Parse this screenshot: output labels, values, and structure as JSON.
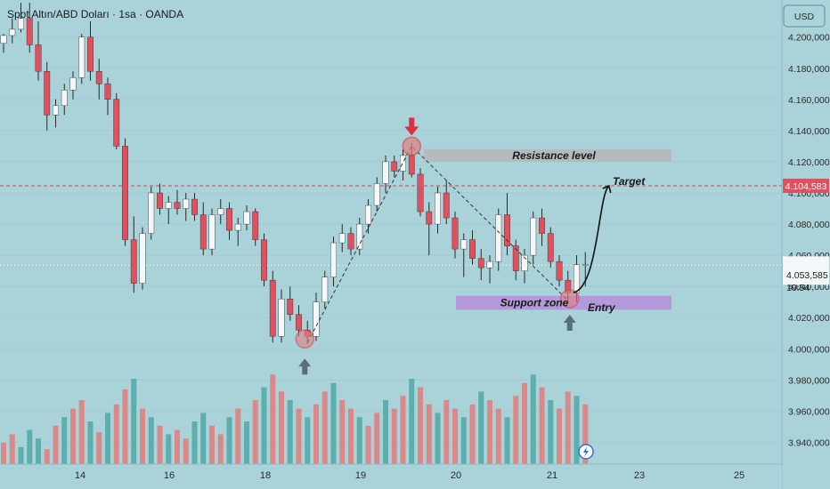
{
  "header": {
    "title": "Spot Altın/ABD Doları · 1sa · OANDA",
    "currency": "USD"
  },
  "colors": {
    "bull": "#f4f7f8",
    "bear": "#e0505e",
    "vol_bull": "#55aaa8",
    "vol_bear": "#e08080",
    "background": "#a9d2d9"
  },
  "chart_data": {
    "type": "candlestick",
    "title": "Spot Altın/ABD Doları · 1sa · OANDA",
    "y_unit": "USD",
    "ylim": [
      3930000,
      4222000
    ],
    "y_ticks": [
      "3.940,000",
      "3.960,000",
      "3.980,000",
      "4.000,000",
      "4.020,000",
      "4.040,000",
      "4.060,000",
      "4.080,000",
      "4.100,000",
      "4.120,000",
      "4.140,000",
      "4.160,000",
      "4.180,000",
      "4.200,000"
    ],
    "x_ticks": [
      "14",
      "16",
      "18",
      "19",
      "20",
      "21",
      "23",
      "25"
    ],
    "current_price": {
      "label": "4.053,585",
      "value": 4053585,
      "countdown": "19:54"
    },
    "target_price": {
      "label": "4.104,583",
      "value": 4104583
    },
    "annotations": {
      "resistance": {
        "label": "Resistance level",
        "low": 4120000,
        "high": 4128000
      },
      "support": {
        "label": "Support zone",
        "low": 4025000,
        "high": 4034000
      },
      "target": "Target",
      "entry": "Entry"
    },
    "candles": [
      [
        4196,
        4202,
        4190,
        4201
      ],
      [
        4201,
        4212,
        4196,
        4205
      ],
      [
        4205,
        4222,
        4203,
        4212
      ],
      [
        4212,
        4222,
        4190,
        4195
      ],
      [
        4195,
        4210,
        4172,
        4178
      ],
      [
        4178,
        4184,
        4140,
        4150
      ],
      [
        4150,
        4160,
        4142,
        4156
      ],
      [
        4156,
        4170,
        4150,
        4166
      ],
      [
        4166,
        4178,
        4160,
        4174
      ],
      [
        4174,
        4202,
        4170,
        4200
      ],
      [
        4200,
        4210,
        4172,
        4178
      ],
      [
        4178,
        4186,
        4160,
        4170
      ],
      [
        4170,
        4174,
        4150,
        4160
      ],
      [
        4160,
        4164,
        4128,
        4130
      ],
      [
        4130,
        4135,
        4066,
        4070
      ],
      [
        4070,
        4085,
        4036,
        4042
      ],
      [
        4042,
        4078,
        4038,
        4074
      ],
      [
        4074,
        4104,
        4070,
        4100
      ],
      [
        4100,
        4106,
        4086,
        4090
      ],
      [
        4090,
        4098,
        4080,
        4094
      ],
      [
        4094,
        4102,
        4086,
        4090
      ],
      [
        4090,
        4100,
        4082,
        4096
      ],
      [
        4096,
        4100,
        4082,
        4086
      ],
      [
        4086,
        4094,
        4060,
        4064
      ],
      [
        4064,
        4090,
        4060,
        4086
      ],
      [
        4086,
        4096,
        4080,
        4090
      ],
      [
        4090,
        4094,
        4070,
        4076
      ],
      [
        4076,
        4084,
        4066,
        4080
      ],
      [
        4080,
        4092,
        4076,
        4088
      ],
      [
        4088,
        4090,
        4066,
        4070
      ],
      [
        4070,
        4074,
        4040,
        4044
      ],
      [
        4044,
        4050,
        4004,
        4008
      ],
      [
        4008,
        4038,
        4004,
        4032
      ],
      [
        4032,
        4040,
        4018,
        4022
      ],
      [
        4022,
        4028,
        4008,
        4012
      ],
      [
        4012,
        4018,
        4003,
        4008
      ],
      [
        4008,
        4036,
        4005,
        4030
      ],
      [
        4030,
        4050,
        4026,
        4046
      ],
      [
        4046,
        4072,
        4040,
        4068
      ],
      [
        4068,
        4080,
        4062,
        4074
      ],
      [
        4074,
        4078,
        4060,
        4064
      ],
      [
        4064,
        4084,
        4060,
        4080
      ],
      [
        4080,
        4096,
        4074,
        4092
      ],
      [
        4092,
        4110,
        4088,
        4106
      ],
      [
        4106,
        4124,
        4100,
        4120
      ],
      [
        4120,
        4124,
        4110,
        4114
      ],
      [
        4114,
        4128,
        4108,
        4124
      ],
      [
        4124,
        4132,
        4110,
        4112
      ],
      [
        4112,
        4116,
        4085,
        4088
      ],
      [
        4088,
        4094,
        4060,
        4080
      ],
      [
        4080,
        4104,
        4074,
        4100
      ],
      [
        4100,
        4108,
        4080,
        4084
      ],
      [
        4084,
        4088,
        4058,
        4064
      ],
      [
        4064,
        4074,
        4046,
        4070
      ],
      [
        4070,
        4076,
        4054,
        4058
      ],
      [
        4058,
        4064,
        4044,
        4052
      ],
      [
        4052,
        4060,
        4042,
        4056
      ],
      [
        4056,
        4090,
        4050,
        4086
      ],
      [
        4086,
        4100,
        4060,
        4066
      ],
      [
        4066,
        4070,
        4044,
        4050
      ],
      [
        4050,
        4064,
        4042,
        4060
      ],
      [
        4060,
        4088,
        4054,
        4084
      ],
      [
        4084,
        4090,
        4066,
        4074
      ],
      [
        4074,
        4078,
        4052,
        4056
      ],
      [
        4056,
        4060,
        4040,
        4044
      ],
      [
        4044,
        4050,
        4030,
        4036
      ],
      [
        4036,
        4060,
        4030,
        4054
      ],
      [
        4054,
        4062,
        4040,
        4054
      ]
    ],
    "volumes": [
      [
        10,
        0
      ],
      [
        14,
        0
      ],
      [
        8,
        1
      ],
      [
        16,
        1
      ],
      [
        12,
        1
      ],
      [
        7,
        0
      ],
      [
        18,
        0
      ],
      [
        22,
        1
      ],
      [
        26,
        0
      ],
      [
        30,
        0
      ],
      [
        20,
        1
      ],
      [
        15,
        0
      ],
      [
        24,
        1
      ],
      [
        28,
        0
      ],
      [
        35,
        0
      ],
      [
        40,
        1
      ],
      [
        26,
        0
      ],
      [
        22,
        1
      ],
      [
        18,
        0
      ],
      [
        14,
        1
      ],
      [
        16,
        0
      ],
      [
        12,
        0
      ],
      [
        20,
        1
      ],
      [
        24,
        1
      ],
      [
        18,
        0
      ],
      [
        14,
        0
      ],
      [
        22,
        1
      ],
      [
        26,
        0
      ],
      [
        20,
        1
      ],
      [
        30,
        0
      ],
      [
        36,
        1
      ],
      [
        42,
        0
      ],
      [
        34,
        0
      ],
      [
        30,
        1
      ],
      [
        26,
        0
      ],
      [
        22,
        1
      ],
      [
        28,
        0
      ],
      [
        34,
        0
      ],
      [
        38,
        1
      ],
      [
        30,
        0
      ],
      [
        26,
        0
      ],
      [
        22,
        1
      ],
      [
        18,
        0
      ],
      [
        24,
        0
      ],
      [
        30,
        1
      ],
      [
        26,
        0
      ],
      [
        32,
        0
      ],
      [
        40,
        1
      ],
      [
        36,
        0
      ],
      [
        28,
        0
      ],
      [
        24,
        1
      ],
      [
        30,
        0
      ],
      [
        26,
        0
      ],
      [
        22,
        1
      ],
      [
        28,
        0
      ],
      [
        34,
        1
      ],
      [
        30,
        0
      ],
      [
        26,
        0
      ],
      [
        22,
        1
      ],
      [
        32,
        0
      ],
      [
        38,
        0
      ],
      [
        42,
        1
      ],
      [
        36,
        0
      ],
      [
        30,
        1
      ],
      [
        26,
        0
      ],
      [
        34,
        0
      ],
      [
        32,
        1
      ],
      [
        28,
        0
      ]
    ]
  }
}
